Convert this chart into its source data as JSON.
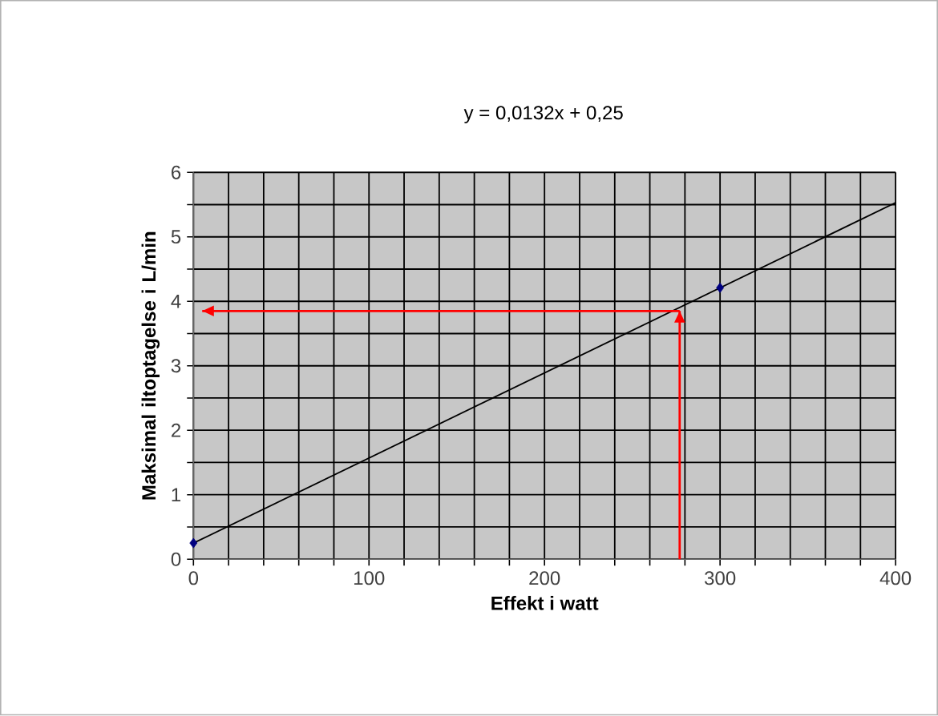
{
  "chart_data": {
    "type": "scatter",
    "title": "y = 0,0132x + 0,25",
    "xlabel": "Effekt i watt",
    "ylabel": "Maksimal iltoptagelse i L/min",
    "xlim": [
      0,
      400
    ],
    "ylim": [
      0,
      6
    ],
    "xticks": [
      0,
      {
        "value": 20,
        "label": null
      },
      {
        "value": 40,
        "label": null
      },
      {
        "value": 60,
        "label": null
      },
      {
        "value": 80,
        "label": null
      },
      100,
      {
        "value": 120,
        "label": null
      },
      {
        "value": 140,
        "label": null
      },
      {
        "value": 160,
        "label": null
      },
      {
        "value": 180,
        "label": null
      },
      200,
      {
        "value": 220,
        "label": null
      },
      {
        "value": 240,
        "label": null
      },
      {
        "value": 260,
        "label": null
      },
      {
        "value": 280,
        "label": null
      },
      300,
      {
        "value": 320,
        "label": null
      },
      {
        "value": 340,
        "label": null
      },
      {
        "value": 360,
        "label": null
      },
      {
        "value": 380,
        "label": null
      },
      400
    ],
    "yticks": [
      0,
      {
        "value": 0.5,
        "label": null
      },
      1,
      {
        "value": 1.5,
        "label": null
      },
      2,
      {
        "value": 2.5,
        "label": null
      },
      3,
      {
        "value": 3.5,
        "label": null
      },
      4,
      {
        "value": 4.5,
        "label": null
      },
      5,
      {
        "value": 5.5,
        "label": null
      },
      6
    ],
    "grid": true,
    "series": [
      {
        "color": "#000080",
        "marker": "diamond",
        "x": [
          0,
          300
        ],
        "values": [
          0.25,
          4.21
        ]
      },
      {
        "type": "line",
        "color": "#000000",
        "marker": "none",
        "x": [
          0,
          400
        ],
        "values": [
          0.25,
          5.53
        ]
      },
      {
        "type": "line",
        "color": "#ff0000",
        "x": [
          277,
          277
        ],
        "values": [
          0,
          3.85
        ]
      },
      {
        "type": "line",
        "color": "#ff0000",
        "x": [
          277,
          5
        ],
        "values": [
          3.85,
          3.85
        ]
      }
    ]
  }
}
